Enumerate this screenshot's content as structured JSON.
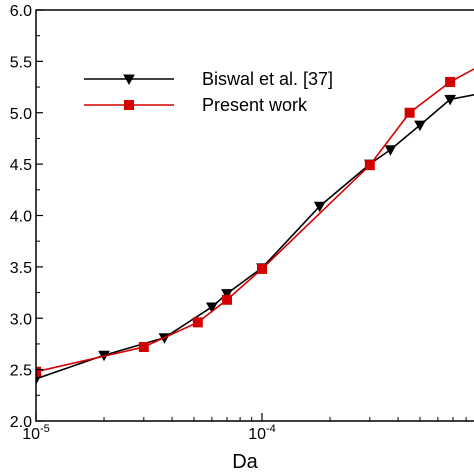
{
  "chart_data": {
    "type": "line",
    "xlabel": "Da",
    "ylabel": "",
    "xscale": "log",
    "xlim": [
      1e-05,
      0.001
    ],
    "ylim": [
      2.0,
      6.0
    ],
    "grid": false,
    "legend_placement": "top-left",
    "x_ticks": [
      {
        "value": 1e-05,
        "base": "10",
        "exp": "-5"
      },
      {
        "value": 0.0001,
        "base": "10",
        "exp": "-4"
      }
    ],
    "y_ticks": [
      {
        "value": 2.0,
        "label": "2.0"
      },
      {
        "value": 2.5,
        "label": "2.5"
      },
      {
        "value": 3.0,
        "label": "3.0"
      },
      {
        "value": 3.5,
        "label": "3.5"
      },
      {
        "value": 4.0,
        "label": "4.0"
      },
      {
        "value": 4.5,
        "label": "4.5"
      },
      {
        "value": 5.0,
        "label": "5.0"
      },
      {
        "value": 5.5,
        "label": "5.5"
      },
      {
        "value": 6.0,
        "label": "6.0"
      }
    ],
    "series": [
      {
        "name": "Biswal et al. [37]",
        "color": "#000000",
        "marker": "triangle-down",
        "x": [
          1e-05,
          2e-05,
          3.7e-05,
          6e-05,
          7e-05,
          0.0001,
          0.00018,
          0.0003,
          0.00037,
          0.0005,
          0.00068,
          0.001
        ],
        "y": [
          2.41,
          2.64,
          2.81,
          3.11,
          3.24,
          3.49,
          4.09,
          4.5,
          4.64,
          4.88,
          5.13,
          5.2
        ]
      },
      {
        "name": "Present work",
        "color": "#d40000",
        "marker": "square",
        "x": [
          1e-05,
          3e-05,
          5.2e-05,
          7e-05,
          0.0001,
          0.0003,
          0.00045,
          0.00068,
          0.001
        ],
        "y": [
          2.48,
          2.72,
          2.96,
          3.18,
          3.48,
          4.49,
          5.0,
          5.3,
          5.5
        ]
      }
    ]
  }
}
